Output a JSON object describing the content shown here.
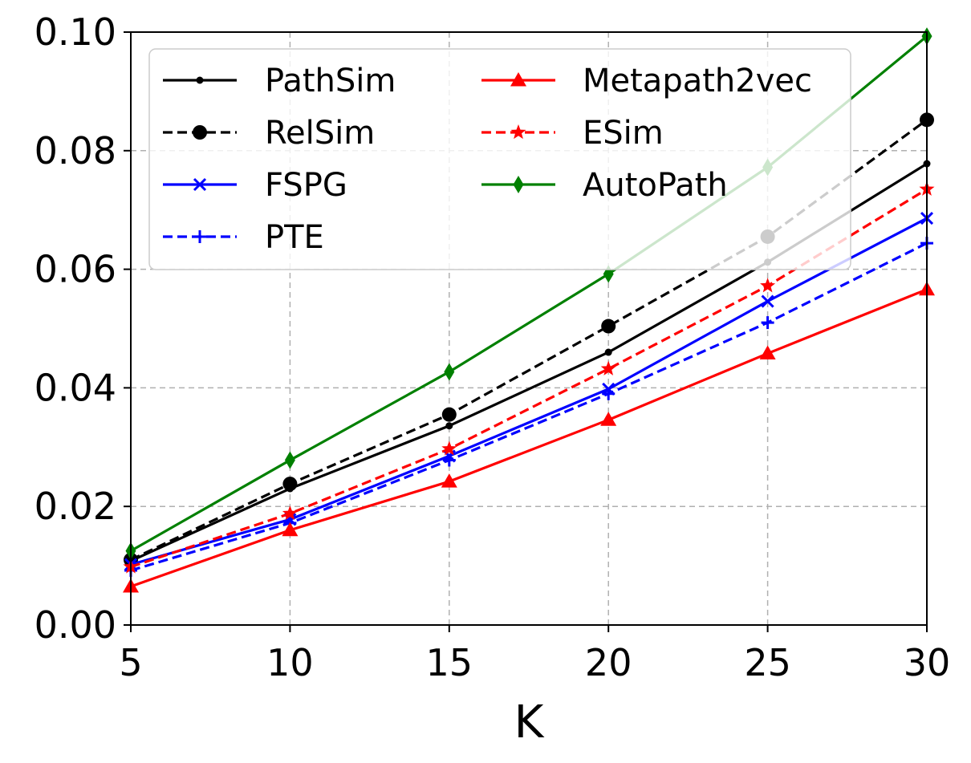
{
  "chart_data": {
    "type": "line",
    "title": "",
    "xlabel": "K",
    "ylabel": "",
    "x": [
      5,
      10,
      15,
      20,
      25,
      30
    ],
    "xlim": [
      5,
      30
    ],
    "ylim": [
      0,
      0.1
    ],
    "xticks": [
      "5",
      "10",
      "15",
      "20",
      "25",
      "30"
    ],
    "yticks": [
      "0.00",
      "0.02",
      "0.04",
      "0.06",
      "0.08",
      "0.10"
    ],
    "grid": true,
    "legend_position": "top-left",
    "legend_columns": 2,
    "series": [
      {
        "name": "PathSim",
        "color": "#000000",
        "dash": "solid",
        "marker": "point",
        "values": [
          0.0108,
          0.023,
          0.0336,
          0.046,
          0.0612,
          0.0778
        ]
      },
      {
        "name": "RelSim",
        "color": "#000000",
        "dash": "dashed",
        "marker": "circle",
        "values": [
          0.011,
          0.0238,
          0.0355,
          0.0504,
          0.0655,
          0.0852
        ]
      },
      {
        "name": "FSPG",
        "color": "#0000ff",
        "dash": "solid",
        "marker": "x",
        "values": [
          0.0102,
          0.0178,
          0.0285,
          0.0398,
          0.0546,
          0.0686
        ]
      },
      {
        "name": "PTE",
        "color": "#0000ff",
        "dash": "dashed",
        "marker": "plus",
        "values": [
          0.0092,
          0.0172,
          0.0278,
          0.039,
          0.051,
          0.0644
        ]
      },
      {
        "name": "Metapath2vec",
        "color": "#ff0000",
        "dash": "solid",
        "marker": "triangle",
        "values": [
          0.0065,
          0.016,
          0.0242,
          0.0346,
          0.0458,
          0.0566
        ]
      },
      {
        "name": "ESim",
        "color": "#ff0000",
        "dash": "dashed",
        "marker": "star",
        "values": [
          0.0098,
          0.0188,
          0.0297,
          0.0432,
          0.0572,
          0.0735
        ]
      },
      {
        "name": "AutoPath",
        "color": "#008000",
        "dash": "solid",
        "marker": "diamond",
        "values": [
          0.0125,
          0.0278,
          0.0427,
          0.0592,
          0.0772,
          0.0993
        ]
      }
    ]
  }
}
